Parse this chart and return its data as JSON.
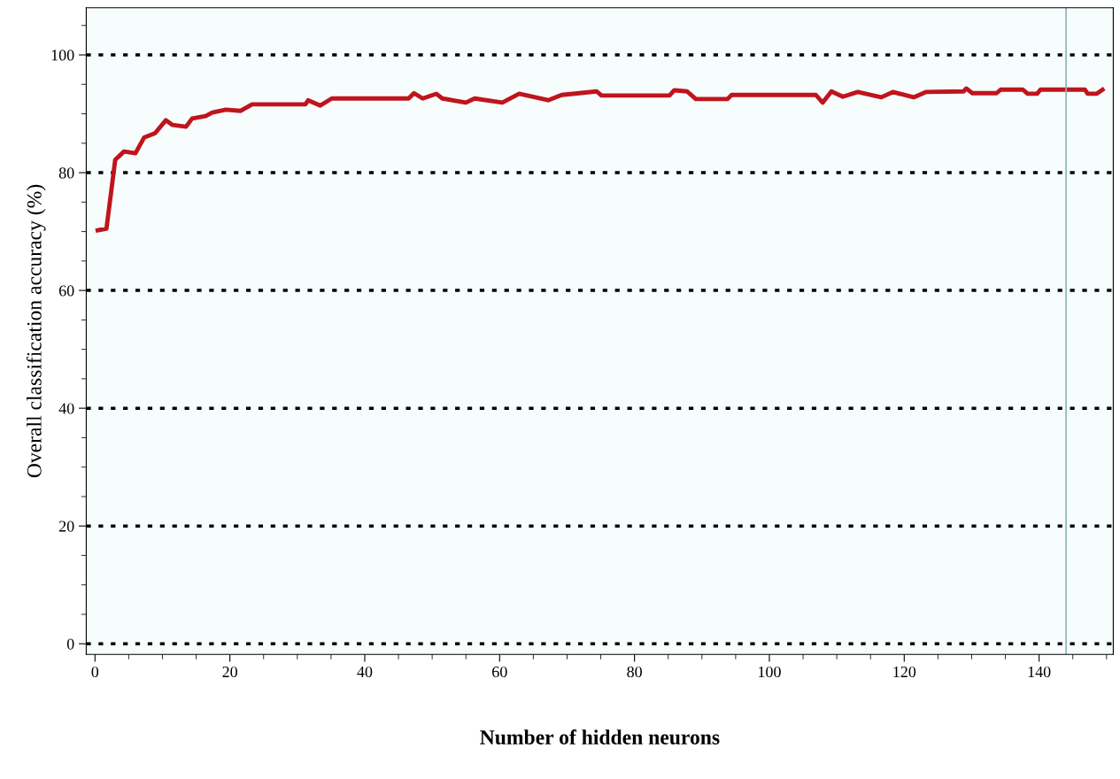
{
  "chart_data": {
    "type": "line",
    "xlabel": "Number of hidden neurons",
    "ylabel": "Overall classification accuracy (%)",
    "xlim": [
      -1.3,
      151
    ],
    "ylim": [
      -1.8,
      108
    ],
    "xticks": [
      0,
      20,
      40,
      60,
      80,
      100,
      120,
      140
    ],
    "yticks": [
      0,
      20,
      40,
      60,
      80,
      100
    ],
    "grid": "y",
    "marker": "none",
    "line_style": "solid",
    "ref_lines": [
      {
        "axis": "x",
        "value": 144,
        "color": "#8fb3b8"
      }
    ],
    "series": [
      {
        "color": "#c0141c",
        "x": [
          0.4,
          1.7,
          3,
          4.3,
          6,
          7.3,
          8.9,
          10.5,
          11.5,
          13.5,
          14.4,
          16.4,
          17.4,
          19.4,
          21.6,
          23.3,
          31.2,
          31.6,
          33.4,
          35.1,
          46.5,
          47.3,
          48.6,
          50.6,
          51.5,
          55,
          56.3,
          60.4,
          62.9,
          67.2,
          69.2,
          74.4,
          75.1,
          85.2,
          85.9,
          87.8,
          89.1,
          93.8,
          94.4,
          101.3,
          106.9,
          107.9,
          109.2,
          110.9,
          113.1,
          116.6,
          118.3,
          121.4,
          123.2,
          128.8,
          129.2,
          130.1,
          133.7,
          134.3,
          137.6,
          138.3,
          139.7,
          140.2,
          146.8,
          147.2,
          148.5,
          149.4
        ],
        "values": [
          70.2,
          70.5,
          82.2,
          83.6,
          83.3,
          86,
          86.7,
          88.9,
          88.1,
          87.8,
          89.2,
          89.6,
          90.2,
          90.7,
          90.5,
          91.6,
          91.6,
          92.3,
          91.4,
          92.6,
          92.6,
          93.5,
          92.6,
          93.4,
          92.6,
          91.9,
          92.6,
          91.9,
          93.4,
          92.3,
          93.2,
          93.8,
          93.1,
          93.1,
          94,
          93.8,
          92.5,
          92.5,
          93.2,
          93.2,
          93.2,
          91.9,
          93.8,
          92.9,
          93.7,
          92.8,
          93.7,
          92.8,
          93.7,
          93.8,
          94.3,
          93.5,
          93.5,
          94.1,
          94.1,
          93.4,
          93.4,
          94.1,
          94.1,
          93.4,
          93.4,
          94.1
        ]
      }
    ]
  }
}
